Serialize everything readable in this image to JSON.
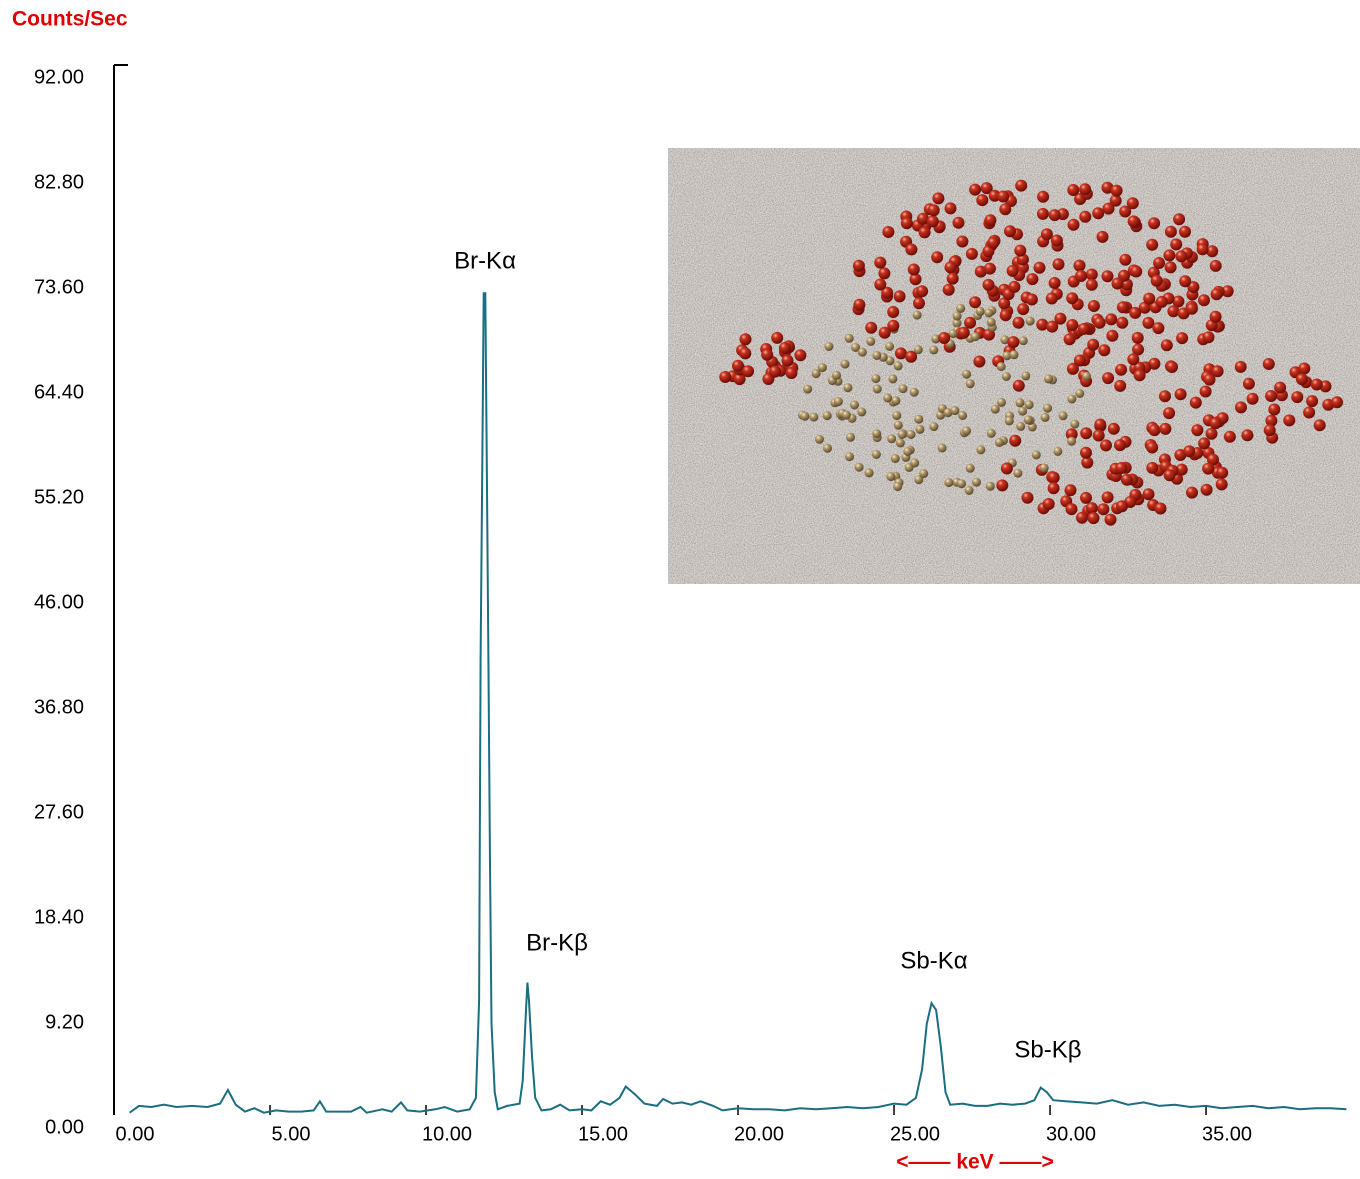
{
  "chart_data": {
    "type": "line",
    "y_label": "Counts/Sec",
    "x_label": "<—— keV ——>",
    "color": "#1a6e80",
    "x": [
      0.5,
      0.8,
      1.2,
      1.6,
      2.0,
      2.5,
      3.0,
      3.4,
      3.65,
      3.9,
      4.2,
      4.5,
      4.8,
      5.2,
      5.6,
      6.0,
      6.4,
      6.6,
      6.8,
      7.2,
      7.6,
      7.9,
      8.1,
      8.6,
      8.9,
      9.2,
      9.4,
      9.8,
      10.3,
      10.6,
      11.0,
      11.4,
      11.6,
      11.7,
      11.75,
      11.8,
      11.85,
      11.9,
      11.95,
      12.0,
      12.05,
      12.1,
      12.2,
      12.3,
      12.6,
      13.0,
      13.1,
      13.2,
      13.25,
      13.3,
      13.4,
      13.5,
      13.7,
      14.0,
      14.3,
      14.6,
      15.0,
      15.3,
      15.6,
      15.9,
      16.2,
      16.4,
      16.7,
      17.0,
      17.4,
      17.6,
      17.9,
      18.2,
      18.5,
      18.8,
      19.2,
      19.5,
      20.0,
      20.5,
      21.0,
      21.5,
      22.0,
      22.5,
      23.0,
      23.5,
      24.0,
      24.5,
      25.0,
      25.4,
      25.7,
      25.9,
      26.05,
      26.2,
      26.35,
      26.5,
      26.65,
      26.8,
      27.2,
      27.6,
      28.0,
      28.4,
      28.8,
      29.2,
      29.5,
      29.7,
      29.9,
      30.1,
      30.5,
      31.0,
      31.5,
      32.0,
      32.5,
      33.0,
      33.5,
      34.0,
      34.5,
      35.0,
      35.5,
      36.0,
      36.5,
      37.0,
      37.5,
      38.0,
      38.5,
      39.0,
      39.5
    ],
    "values": [
      0.2,
      0.8,
      0.7,
      0.9,
      0.7,
      0.8,
      0.7,
      1.0,
      2.2,
      0.9,
      0.3,
      0.6,
      0.2,
      0.4,
      0.3,
      0.3,
      0.4,
      1.2,
      0.3,
      0.3,
      0.3,
      0.7,
      0.2,
      0.5,
      0.3,
      1.1,
      0.4,
      0.3,
      0.5,
      0.7,
      0.3,
      0.5,
      1.5,
      10,
      40,
      56,
      72,
      72,
      56,
      40,
      22,
      8,
      2,
      0.5,
      0.8,
      1.0,
      3,
      9,
      11.6,
      10,
      5,
      1.5,
      0.4,
      0.5,
      0.9,
      0.4,
      0.5,
      0.4,
      1.2,
      0.9,
      1.5,
      2.5,
      1.8,
      1.0,
      0.8,
      1.4,
      1.0,
      1.1,
      0.9,
      1.2,
      0.8,
      0.4,
      0.6,
      0.5,
      0.5,
      0.4,
      0.6,
      0.5,
      0.6,
      0.7,
      0.6,
      0.7,
      1.0,
      0.9,
      1.5,
      4,
      8,
      9.8,
      9.2,
      6,
      2,
      0.9,
      1.0,
      0.8,
      0.8,
      1.0,
      0.9,
      1.0,
      1.3,
      2.4,
      2.0,
      1.3,
      1.2,
      1.1,
      1.0,
      1.3,
      0.9,
      1.1,
      0.8,
      0.9,
      0.7,
      0.8,
      0.6,
      0.7,
      0.8,
      0.6,
      0.7,
      0.5,
      0.6,
      0.6,
      0.5
    ],
    "xlim": [
      0,
      39.55
    ],
    "ylim": [
      0,
      92
    ],
    "xticks": [
      {
        "value": 0,
        "label": "0.00"
      },
      {
        "value": 5,
        "label": "5.00"
      },
      {
        "value": 10,
        "label": "10.00"
      },
      {
        "value": 15,
        "label": "15.00"
      },
      {
        "value": 20,
        "label": "20.00"
      },
      {
        "value": 25,
        "label": "25.00"
      },
      {
        "value": 30,
        "label": "30.00"
      },
      {
        "value": 35,
        "label": "35.00"
      }
    ],
    "yticks": [
      {
        "value": 0,
        "label": "0.00"
      },
      {
        "value": 9.2,
        "label": "9.20"
      },
      {
        "value": 18.4,
        "label": "18.40"
      },
      {
        "value": 27.6,
        "label": "27.60"
      },
      {
        "value": 36.8,
        "label": "36.80"
      },
      {
        "value": 46,
        "label": "46.00"
      },
      {
        "value": 55.2,
        "label": "55.20"
      },
      {
        "value": 64.4,
        "label": "64.40"
      },
      {
        "value": 73.6,
        "label": "73.60"
      },
      {
        "value": 82.8,
        "label": "82.80"
      },
      {
        "value": 92,
        "label": "92.00"
      }
    ],
    "annotations": [
      "Br-Kα",
      "Br-Kβ",
      "Sb-Kα",
      "Sb-Kβ"
    ]
  }
}
